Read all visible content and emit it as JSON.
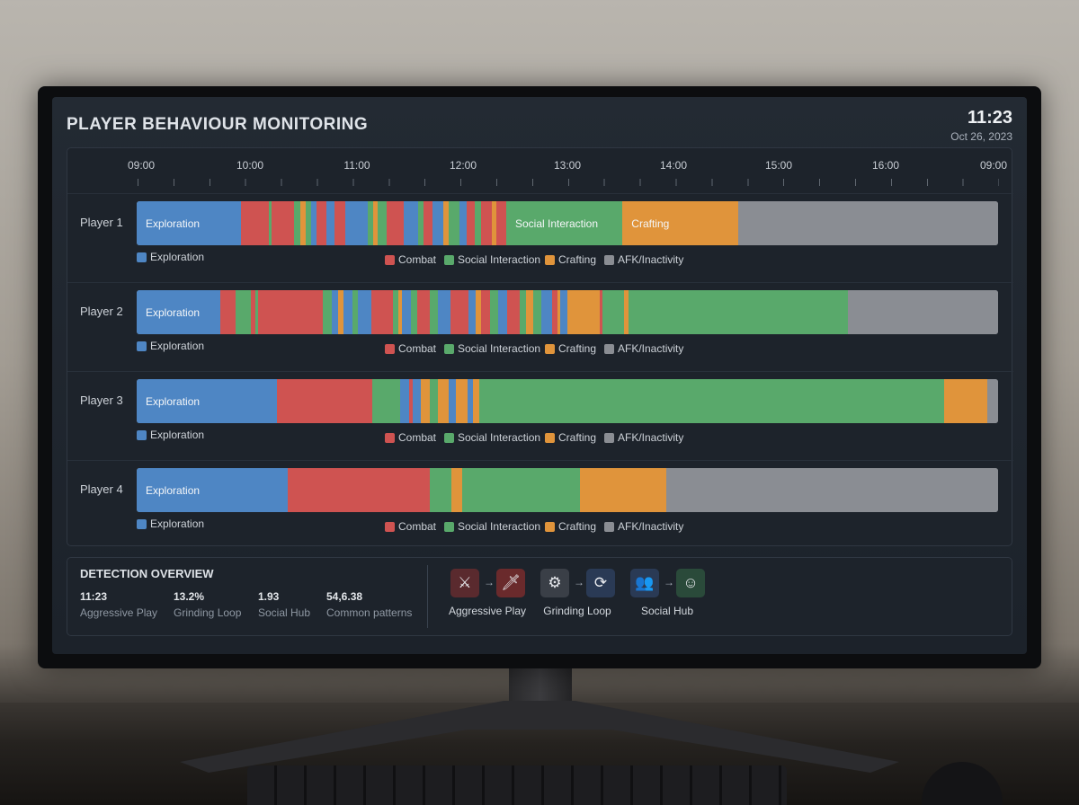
{
  "header": {
    "title": "PLAYER BEHAVIOUR MONITORING",
    "time": "11:23",
    "date": "Oct 26, 2023"
  },
  "timeline": {
    "ticks": [
      "09:00",
      "10:00",
      "11:00",
      "12:00",
      "13:00",
      "14:00",
      "15:00",
      "16:00",
      "09:00"
    ],
    "colors": {
      "exploration": "#4e86c4",
      "combat": "#cf5351",
      "social": "#59a96b",
      "crafting": "#e0943b",
      "afk": "#8a8d93"
    },
    "legend": {
      "exploration": "Exploration",
      "combat": "Combat",
      "social": "Social Interaction",
      "crafting": "Crafting",
      "afk": "AFK/Inactivity"
    },
    "players": [
      {
        "name": "Player 1",
        "labels": [
          "Exploration",
          "Social Interaction",
          "Crafting"
        ],
        "segments": [
          {
            "type": "exploration",
            "start": 0,
            "end": 0.121
          },
          {
            "type": "combat",
            "start": 0.121,
            "end": 0.153
          },
          {
            "type": "social",
            "start": 0.153,
            "end": 0.157
          },
          {
            "type": "combat",
            "start": 0.157,
            "end": 0.183
          },
          {
            "type": "social",
            "start": 0.183,
            "end": 0.19
          },
          {
            "type": "crafting",
            "start": 0.19,
            "end": 0.196
          },
          {
            "type": "social",
            "start": 0.196,
            "end": 0.203
          },
          {
            "type": "exploration",
            "start": 0.203,
            "end": 0.209
          },
          {
            "type": "combat",
            "start": 0.209,
            "end": 0.22
          },
          {
            "type": "exploration",
            "start": 0.22,
            "end": 0.23
          },
          {
            "type": "combat",
            "start": 0.23,
            "end": 0.242
          },
          {
            "type": "exploration",
            "start": 0.242,
            "end": 0.268
          },
          {
            "type": "social",
            "start": 0.268,
            "end": 0.275
          },
          {
            "type": "crafting",
            "start": 0.275,
            "end": 0.28
          },
          {
            "type": "social",
            "start": 0.28,
            "end": 0.29
          },
          {
            "type": "combat",
            "start": 0.29,
            "end": 0.31
          },
          {
            "type": "exploration",
            "start": 0.31,
            "end": 0.327
          },
          {
            "type": "social",
            "start": 0.327,
            "end": 0.333
          },
          {
            "type": "combat",
            "start": 0.333,
            "end": 0.343
          },
          {
            "type": "exploration",
            "start": 0.343,
            "end": 0.356
          },
          {
            "type": "crafting",
            "start": 0.356,
            "end": 0.362
          },
          {
            "type": "social",
            "start": 0.362,
            "end": 0.375
          },
          {
            "type": "exploration",
            "start": 0.375,
            "end": 0.383
          },
          {
            "type": "combat",
            "start": 0.383,
            "end": 0.393
          },
          {
            "type": "social",
            "start": 0.393,
            "end": 0.4
          },
          {
            "type": "combat",
            "start": 0.4,
            "end": 0.412
          },
          {
            "type": "crafting",
            "start": 0.412,
            "end": 0.418
          },
          {
            "type": "combat",
            "start": 0.418,
            "end": 0.429
          },
          {
            "type": "social",
            "start": 0.429,
            "end": 0.564
          },
          {
            "type": "crafting",
            "start": 0.564,
            "end": 0.698
          },
          {
            "type": "afk",
            "start": 0.698,
            "end": 1
          }
        ]
      },
      {
        "name": "Player 2",
        "labels": [
          "Exploration",
          "",
          ""
        ],
        "segments": [
          {
            "type": "exploration",
            "start": 0,
            "end": 0.097
          },
          {
            "type": "combat",
            "start": 0.097,
            "end": 0.115
          },
          {
            "type": "social",
            "start": 0.115,
            "end": 0.133
          },
          {
            "type": "combat",
            "start": 0.133,
            "end": 0.138
          },
          {
            "type": "social",
            "start": 0.138,
            "end": 0.141
          },
          {
            "type": "combat",
            "start": 0.141,
            "end": 0.216
          },
          {
            "type": "social",
            "start": 0.216,
            "end": 0.226
          },
          {
            "type": "exploration",
            "start": 0.226,
            "end": 0.234
          },
          {
            "type": "crafting",
            "start": 0.234,
            "end": 0.24
          },
          {
            "type": "exploration",
            "start": 0.24,
            "end": 0.25
          },
          {
            "type": "social",
            "start": 0.25,
            "end": 0.257
          },
          {
            "type": "exploration",
            "start": 0.257,
            "end": 0.272
          },
          {
            "type": "combat",
            "start": 0.272,
            "end": 0.297
          },
          {
            "type": "social",
            "start": 0.297,
            "end": 0.304
          },
          {
            "type": "crafting",
            "start": 0.304,
            "end": 0.308
          },
          {
            "type": "exploration",
            "start": 0.308,
            "end": 0.318
          },
          {
            "type": "social",
            "start": 0.318,
            "end": 0.326
          },
          {
            "type": "combat",
            "start": 0.326,
            "end": 0.34
          },
          {
            "type": "social",
            "start": 0.34,
            "end": 0.35
          },
          {
            "type": "exploration",
            "start": 0.35,
            "end": 0.364
          },
          {
            "type": "combat",
            "start": 0.364,
            "end": 0.385
          },
          {
            "type": "exploration",
            "start": 0.385,
            "end": 0.394
          },
          {
            "type": "crafting",
            "start": 0.394,
            "end": 0.4
          },
          {
            "type": "combat",
            "start": 0.4,
            "end": 0.41
          },
          {
            "type": "social",
            "start": 0.41,
            "end": 0.42
          },
          {
            "type": "exploration",
            "start": 0.42,
            "end": 0.43
          },
          {
            "type": "combat",
            "start": 0.43,
            "end": 0.445
          },
          {
            "type": "social",
            "start": 0.445,
            "end": 0.452
          },
          {
            "type": "crafting",
            "start": 0.452,
            "end": 0.46
          },
          {
            "type": "social",
            "start": 0.46,
            "end": 0.47
          },
          {
            "type": "exploration",
            "start": 0.47,
            "end": 0.482
          },
          {
            "type": "combat",
            "start": 0.482,
            "end": 0.488
          },
          {
            "type": "crafting",
            "start": 0.488,
            "end": 0.492
          },
          {
            "type": "exploration",
            "start": 0.492,
            "end": 0.5
          },
          {
            "type": "crafting",
            "start": 0.5,
            "end": 0.538
          },
          {
            "type": "combat",
            "start": 0.538,
            "end": 0.541
          },
          {
            "type": "social",
            "start": 0.541,
            "end": 0.566
          },
          {
            "type": "crafting",
            "start": 0.566,
            "end": 0.571
          },
          {
            "type": "social",
            "start": 0.571,
            "end": 0.826
          },
          {
            "type": "afk",
            "start": 0.826,
            "end": 1
          }
        ]
      },
      {
        "name": "Player 3",
        "labels": [
          "Exploration",
          "",
          ""
        ],
        "segments": [
          {
            "type": "exploration",
            "start": 0,
            "end": 0.163
          },
          {
            "type": "combat",
            "start": 0.163,
            "end": 0.273
          },
          {
            "type": "social",
            "start": 0.273,
            "end": 0.306
          },
          {
            "type": "exploration",
            "start": 0.306,
            "end": 0.316
          },
          {
            "type": "combat",
            "start": 0.316,
            "end": 0.32
          },
          {
            "type": "exploration",
            "start": 0.32,
            "end": 0.33
          },
          {
            "type": "crafting",
            "start": 0.33,
            "end": 0.34
          },
          {
            "type": "social",
            "start": 0.34,
            "end": 0.35
          },
          {
            "type": "crafting",
            "start": 0.35,
            "end": 0.362
          },
          {
            "type": "exploration",
            "start": 0.362,
            "end": 0.371
          },
          {
            "type": "crafting",
            "start": 0.371,
            "end": 0.384
          },
          {
            "type": "exploration",
            "start": 0.384,
            "end": 0.39
          },
          {
            "type": "crafting",
            "start": 0.39,
            "end": 0.398
          },
          {
            "type": "social",
            "start": 0.398,
            "end": 0.937
          },
          {
            "type": "crafting",
            "start": 0.937,
            "end": 0.987
          },
          {
            "type": "afk",
            "start": 0.987,
            "end": 1
          }
        ]
      },
      {
        "name": "Player 4",
        "labels": [
          "Exploration",
          "",
          ""
        ],
        "segments": [
          {
            "type": "exploration",
            "start": 0,
            "end": 0.175
          },
          {
            "type": "combat",
            "start": 0.175,
            "end": 0.34
          },
          {
            "type": "social",
            "start": 0.34,
            "end": 0.365
          },
          {
            "type": "crafting",
            "start": 0.365,
            "end": 0.378
          },
          {
            "type": "social",
            "start": 0.378,
            "end": 0.515
          },
          {
            "type": "crafting",
            "start": 0.515,
            "end": 0.615
          },
          {
            "type": "afk",
            "start": 0.615,
            "end": 1
          }
        ]
      }
    ]
  },
  "overview": {
    "title": "DETECTION OVERVIEW",
    "stats": [
      {
        "value": "11:23",
        "label": "Aggressive Play"
      },
      {
        "value": "13.2%",
        "label": "Grinding Loop"
      },
      {
        "value": "1.93",
        "label": "Social Hub"
      },
      {
        "value": "54,6.38",
        "label": "Common patterns"
      }
    ],
    "flows": [
      {
        "label": "Aggressive Play",
        "from_icon": "crossed-swords-icon",
        "to_icon": "sword-icon",
        "from_color": "#5a2a2e",
        "to_color": "#6a2a2c"
      },
      {
        "label": "Grinding Loop",
        "from_icon": "grind-gear-icon",
        "to_icon": "refresh-loop-icon",
        "from_color": "#3a3f47",
        "to_color": "#2a3a55"
      },
      {
        "label": "Social Hub",
        "from_icon": "two-users-icon",
        "to_icon": "group-users-icon",
        "from_color": "#2a3a55",
        "to_color": "#2a4a3a"
      }
    ],
    "arrow": "→"
  }
}
